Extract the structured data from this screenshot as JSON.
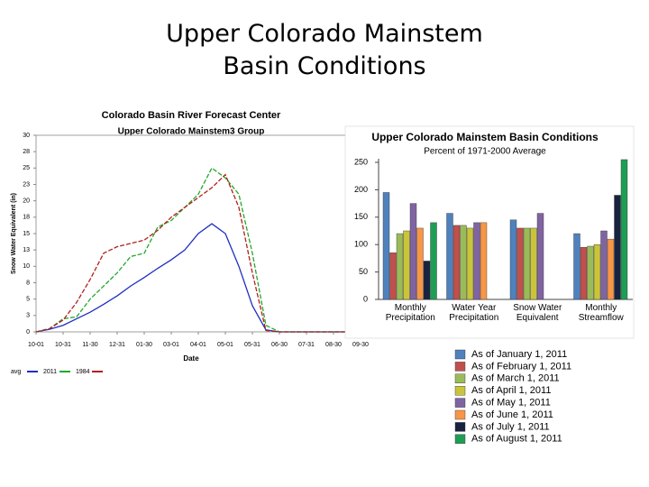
{
  "header": {
    "title_lines": [
      "Upper Colorado Mainstem",
      "Basin Conditions"
    ]
  },
  "chart_data": [
    {
      "type": "line",
      "title": "Colorado Basin River Forecast Center",
      "subtitle": "Upper Colorado Mainstem3 Group",
      "y_label": "Snow Water Equivalent (in)",
      "x_label": "Date",
      "x": [
        0,
        15,
        30,
        45,
        60,
        75,
        90,
        105,
        120,
        135,
        150,
        165,
        180,
        195,
        210,
        225,
        240,
        255,
        270,
        285,
        300,
        315,
        330,
        345,
        360
      ],
      "series": [
        {
          "name": "avg",
          "color": "#1f2fbf",
          "values": [
            0,
            0.4,
            1,
            2,
            3,
            4.2,
            5.5,
            7,
            8.3,
            9.7,
            11,
            12.5,
            15,
            16.5,
            15,
            10,
            4,
            0.3,
            0,
            0,
            0,
            0,
            0,
            0,
            0
          ]
        },
        {
          "name": "2011",
          "color": "#22a82a",
          "values": [
            0,
            0.5,
            2,
            2.3,
            5,
            7,
            9,
            11.5,
            12,
            16,
            17,
            19,
            21,
            25,
            23.5,
            21,
            12,
            1,
            0,
            0,
            0,
            0,
            0,
            0,
            0
          ]
        },
        {
          "name": "1984",
          "color": "#b0201a",
          "values": [
            0,
            0.5,
            1.8,
            4.5,
            8,
            12,
            13,
            13.5,
            14,
            15.5,
            17.5,
            19,
            20.5,
            22,
            24,
            19,
            9,
            0.2,
            0,
            0,
            0,
            0,
            0,
            0,
            0
          ]
        }
      ],
      "xlim": [
        0,
        360
      ],
      "xticks": [
        {
          "value": 0,
          "label": "10-01"
        },
        {
          "value": 30,
          "label": "10-31"
        },
        {
          "value": 60,
          "label": "11-30"
        },
        {
          "value": 90,
          "label": "12-31"
        },
        {
          "value": 120,
          "label": "01-30"
        },
        {
          "value": 150,
          "label": "03-01"
        },
        {
          "value": 180,
          "label": "04-01"
        },
        {
          "value": 210,
          "label": "05-01"
        },
        {
          "value": 240,
          "label": "05-31"
        },
        {
          "value": 270,
          "label": "06-30"
        },
        {
          "value": 300,
          "label": "07-31"
        },
        {
          "value": 330,
          "label": "08-30"
        },
        {
          "value": 360,
          "label": "09-30"
        }
      ],
      "ylim": [
        0,
        30
      ],
      "yticks": [
        0,
        {
          "value": 2.5,
          "label": "3"
        },
        5,
        {
          "value": 7.5,
          "label": "8"
        },
        10,
        {
          "value": 12.5,
          "label": "13"
        },
        15,
        {
          "value": 17.5,
          "label": "18"
        },
        20,
        {
          "value": 22.5,
          "label": "23"
        },
        25,
        {
          "value": 27.5,
          "label": "28"
        },
        30
      ]
    },
    {
      "type": "bar",
      "title": "Upper Colorado Mainstem Basin Conditions",
      "subtitle": "Percent of 1971-2000 Average",
      "categories": [
        "Monthly Precipitation",
        "Water Year Precipitation",
        "Snow Water Equivalent",
        "Monthly Streamflow"
      ],
      "series": [
        {
          "name": "As of January 1, 2011",
          "color": "#4f81bd",
          "values": [
            195,
            157,
            145,
            120
          ]
        },
        {
          "name": "As of February 1, 2011",
          "color": "#c0504d",
          "values": [
            85,
            135,
            130,
            95
          ]
        },
        {
          "name": "As of March 1, 2011",
          "color": "#9bbb59",
          "values": [
            120,
            135,
            130,
            97
          ]
        },
        {
          "name": "As of April 1, 2011",
          "color": "#c9c43a",
          "values": [
            125,
            130,
            130,
            100
          ]
        },
        {
          "name": "As of May 1, 2011",
          "color": "#8064a2",
          "values": [
            175,
            140,
            157,
            125
          ]
        },
        {
          "name": "As of June 1, 2011",
          "color": "#f79646",
          "values": [
            130,
            140,
            null,
            110
          ]
        },
        {
          "name": "As of July 1, 2011",
          "color": "#17233f",
          "values": [
            70,
            null,
            null,
            190
          ]
        },
        {
          "name": "As of August 1, 2011",
          "color": "#1e9e55",
          "values": [
            140,
            null,
            null,
            255
          ]
        }
      ],
      "ylim": [
        0,
        250
      ],
      "yticks": [
        0,
        50,
        100,
        150,
        200,
        250
      ]
    }
  ]
}
